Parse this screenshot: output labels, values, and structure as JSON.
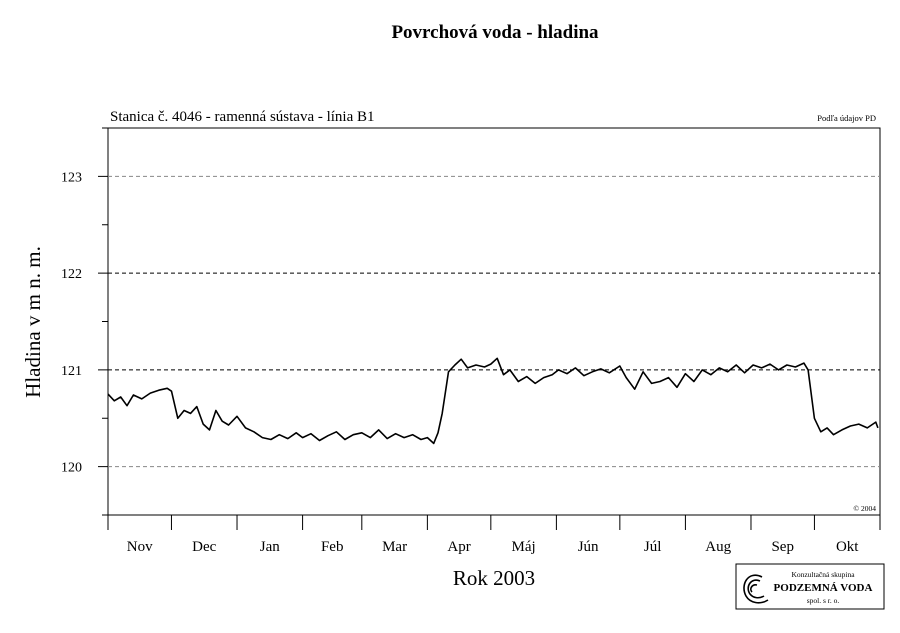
{
  "chart_data": {
    "type": "line",
    "title": "Povrchová voda - hladina",
    "subtitle": "Stanica č. 4046 - ramenná sústava - línia B1",
    "source_note": "Podľa údajov PD",
    "copyright": "© 2004",
    "xlabel": "Rok 2003",
    "ylabel": "Hladina v m n. m.",
    "ylim": [
      119.5,
      123.5
    ],
    "y_ticks": [
      120,
      121,
      122,
      123
    ],
    "y_tick_labels": [
      "120",
      "121",
      "122",
      "123"
    ],
    "y_minor_step": 0.5,
    "gridlines": [
      {
        "y": 120,
        "style": "dashed-gray"
      },
      {
        "y": 121,
        "style": "dashed-black"
      },
      {
        "y": 122,
        "style": "dashed-black"
      },
      {
        "y": 123,
        "style": "dashed-gray"
      }
    ],
    "xlim": [
      "2002-11-01",
      "2003-11-01"
    ],
    "x_months": [
      "Nov",
      "Dec",
      "Jan",
      "Feb",
      "Mar",
      "Apr",
      "Máj",
      "Jún",
      "Júl",
      "Aug",
      "Sep",
      "Okt"
    ],
    "series": [
      {
        "color": "#000000",
        "x": [
          "2002-11-01",
          "2002-11-04",
          "2002-11-07",
          "2002-11-10",
          "2002-11-13",
          "2002-11-17",
          "2002-11-21",
          "2002-11-25",
          "2002-11-29",
          "2002-12-01",
          "2002-12-04",
          "2002-12-07",
          "2002-12-10",
          "2002-12-13",
          "2002-12-16",
          "2002-12-19",
          "2002-12-22",
          "2002-12-25",
          "2002-12-28",
          "2003-01-01",
          "2003-01-05",
          "2003-01-09",
          "2003-01-13",
          "2003-01-17",
          "2003-01-21",
          "2003-01-25",
          "2003-01-29",
          "2003-02-01",
          "2003-02-05",
          "2003-02-09",
          "2003-02-13",
          "2003-02-17",
          "2003-02-21",
          "2003-02-25",
          "2003-03-01",
          "2003-03-05",
          "2003-03-09",
          "2003-03-13",
          "2003-03-17",
          "2003-03-21",
          "2003-03-25",
          "2003-03-29",
          "2003-04-01",
          "2003-04-04",
          "2003-04-06",
          "2003-04-08",
          "2003-04-11",
          "2003-04-14",
          "2003-04-17",
          "2003-04-20",
          "2003-04-24",
          "2003-04-28",
          "2003-05-01",
          "2003-05-04",
          "2003-05-07",
          "2003-05-10",
          "2003-05-14",
          "2003-05-18",
          "2003-05-22",
          "2003-05-26",
          "2003-05-30",
          "2003-06-02",
          "2003-06-06",
          "2003-06-10",
          "2003-06-14",
          "2003-06-18",
          "2003-06-22",
          "2003-06-26",
          "2003-07-01",
          "2003-07-04",
          "2003-07-08",
          "2003-07-12",
          "2003-07-16",
          "2003-07-20",
          "2003-07-24",
          "2003-07-28",
          "2003-08-01",
          "2003-08-05",
          "2003-08-09",
          "2003-08-13",
          "2003-08-17",
          "2003-08-21",
          "2003-08-25",
          "2003-08-29",
          "2003-09-02",
          "2003-09-06",
          "2003-09-10",
          "2003-09-14",
          "2003-09-18",
          "2003-09-22",
          "2003-09-26",
          "2003-09-28",
          "2003-10-01",
          "2003-10-04",
          "2003-10-07",
          "2003-10-10",
          "2003-10-14",
          "2003-10-18",
          "2003-10-22",
          "2003-10-26",
          "2003-10-30",
          "2003-10-31"
        ],
        "y": [
          120.75,
          120.68,
          120.72,
          120.63,
          120.74,
          120.7,
          120.76,
          120.79,
          120.81,
          120.78,
          120.5,
          120.58,
          120.55,
          120.62,
          120.44,
          120.38,
          120.58,
          120.47,
          120.43,
          120.52,
          120.4,
          120.36,
          120.3,
          120.28,
          120.33,
          120.29,
          120.35,
          120.3,
          120.34,
          120.27,
          120.32,
          120.36,
          120.28,
          120.33,
          120.35,
          120.3,
          120.38,
          120.29,
          120.34,
          120.3,
          120.33,
          120.28,
          120.3,
          120.24,
          120.35,
          120.55,
          120.98,
          121.05,
          121.11,
          121.02,
          121.05,
          121.03,
          121.06,
          121.12,
          120.95,
          121.0,
          120.88,
          120.93,
          120.86,
          120.92,
          120.95,
          121.0,
          120.96,
          121.02,
          120.94,
          120.98,
          121.01,
          120.97,
          121.04,
          120.92,
          120.8,
          120.98,
          120.86,
          120.88,
          120.92,
          120.82,
          120.96,
          120.88,
          121.0,
          120.95,
          121.02,
          120.98,
          121.05,
          120.97,
          121.05,
          121.02,
          121.06,
          121.0,
          121.05,
          121.03,
          121.07,
          121.0,
          120.5,
          120.36,
          120.4,
          120.33,
          120.38,
          120.42,
          120.44,
          120.4,
          120.46,
          120.4
        ]
      }
    ]
  },
  "logo": {
    "line1": "Konzultačná skupina",
    "line2": "PODZEMNÁ VODA",
    "line3": "spol. s r. o."
  }
}
